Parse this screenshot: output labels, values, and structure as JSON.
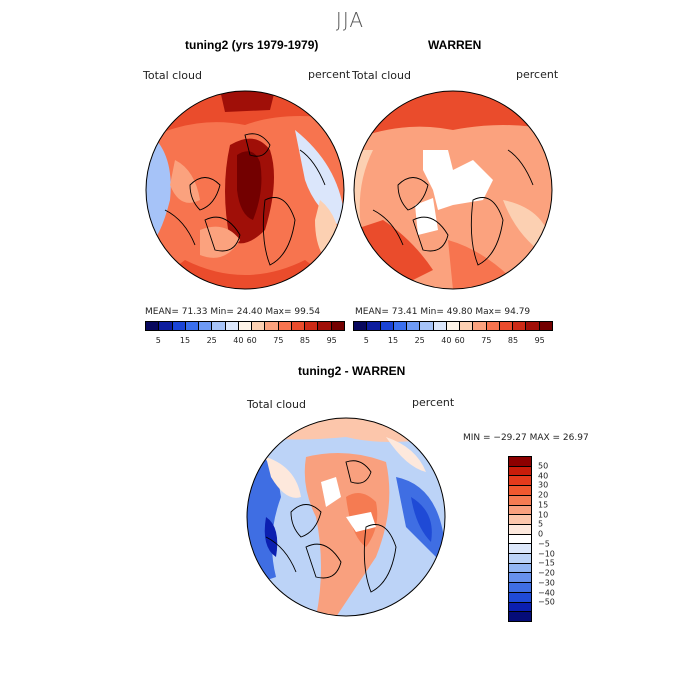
{
  "title": "JJA",
  "panel1": {
    "title": "tuning2 (yrs 1979-1979)",
    "variable": "Total cloud",
    "units": "percent",
    "stats": "MEAN=  71.33   Min=  24.40   Max=  99.54"
  },
  "panel2": {
    "title": "WARREN",
    "variable": "Total cloud",
    "units": "percent",
    "stats": "MEAN=  73.41   Min=  49.80   Max=  94.79"
  },
  "panel3": {
    "title": "tuning2 - WARREN",
    "variable": "Total cloud",
    "units": "percent",
    "stats": "MIN = −29.27 MAX =   26.97"
  },
  "colorbar_abs": {
    "colors": [
      "#08085e",
      "#0d1d9e",
      "#1a44d6",
      "#3a6fee",
      "#6e9af5",
      "#a6c3f8",
      "#dbe6fb",
      "#fdf3e8",
      "#fcd0b2",
      "#fba27e",
      "#f7744f",
      "#ea4c2c",
      "#cd2a16",
      "#a00f08",
      "#730000"
    ],
    "ticks": [
      "5",
      "15",
      "25",
      "40",
      "60",
      "75",
      "85",
      "95"
    ]
  },
  "colorbar_diff": {
    "colors": [
      "#8c0000",
      "#c81c0a",
      "#e43a1c",
      "#f0582f",
      "#f57b52",
      "#f9a07e",
      "#fcc6ab",
      "#fde8dc",
      "#ffffff",
      "#dde8fb",
      "#bcd3f7",
      "#92b6f3",
      "#6791ec",
      "#3f6ee3",
      "#1f4ad6",
      "#0b1fb0",
      "#050c78"
    ],
    "ticks": [
      "50",
      "40",
      "30",
      "20",
      "15",
      "10",
      "5",
      "0",
      "−5",
      "−10",
      "−15",
      "−20",
      "−30",
      "−40",
      "−50"
    ]
  }
}
